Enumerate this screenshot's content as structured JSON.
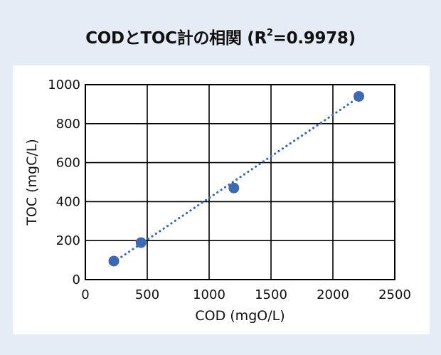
{
  "title": {
    "main": "CODとTOC計の相関 (R",
    "sup": "2",
    "tail": "=0.9978)"
  },
  "colors": {
    "background": "#e6ecf6",
    "panel": "#ffffff",
    "grid": "#000000",
    "marker": "#3d68b4",
    "trendline": "#3d68b4"
  },
  "chart_data": {
    "type": "scatter",
    "title": "CODとTOC計の相関 (R²=0.9978)",
    "xlabel": "COD (mgO/L)",
    "ylabel": "TOC (mgC/L)",
    "xlim": [
      0,
      2500
    ],
    "ylim": [
      0,
      1000
    ],
    "xticks": [
      0,
      500,
      1000,
      1500,
      2000,
      2500
    ],
    "yticks": [
      0,
      200,
      400,
      600,
      800,
      1000
    ],
    "grid": true,
    "series": [
      {
        "x": [
          230,
          450,
          1200,
          2210
        ],
        "y": [
          95,
          190,
          470,
          940
        ],
        "marker": "circle"
      }
    ],
    "trendline": {
      "style": "dotted",
      "x": [
        230,
        2210
      ],
      "y": [
        90,
        935
      ]
    },
    "annotations": [
      "R²=0.9978"
    ]
  }
}
